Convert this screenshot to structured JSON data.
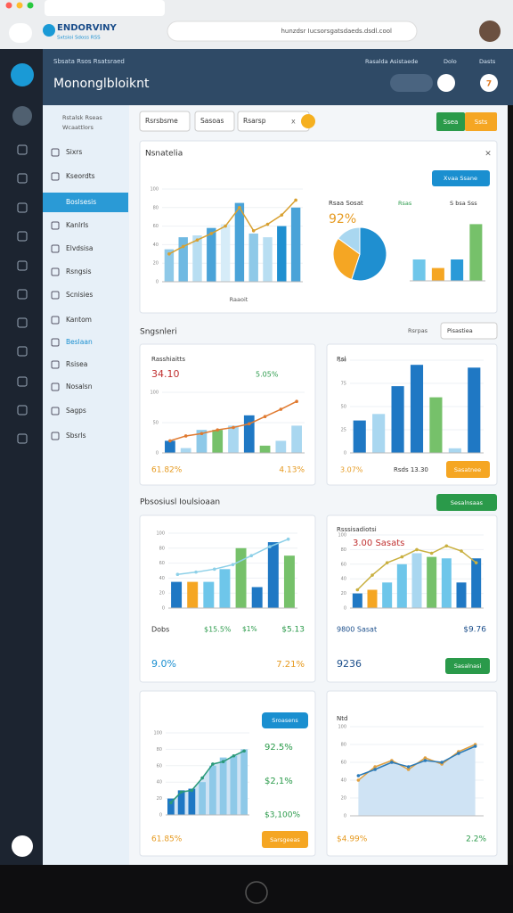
{
  "browser": {
    "brand": "ENDORVINY",
    "brand_sub": "Sxtsioi Sdoss RSS",
    "url": "hunzdsr Iucsorsgatsdaeds.dsdl.cool"
  },
  "header": {
    "crumb": "Sbsata Rsos Rsatsraed",
    "title": "Mononglbloiknt",
    "links": [
      "Rasalda Asistaede",
      "Dolo",
      "Dasts"
    ],
    "badge": "7"
  },
  "sidebar": {
    "heading": [
      "Rstalsk Rseas",
      "Wcaattlors"
    ],
    "items": [
      "Sixrs",
      "Kseordts",
      "Boslsesis",
      "Kanlrls",
      "Elvdsisa",
      "Rsngsis",
      "Scnisies",
      "Kantom",
      "Beslaan",
      "Rsisea",
      "Nosalsn",
      "Sagps",
      "Sbsrls"
    ],
    "active": 2
  },
  "filters": {
    "tabs": [
      "Rsrsbsme",
      "Sasoas",
      "Rsarsp"
    ],
    "close": "x",
    "actions": [
      "Ssea",
      "Ssts"
    ]
  },
  "overview": {
    "title": "Nsnatelia",
    "close": "×",
    "button": "Xvaa Ssane",
    "caption": "Raaoit",
    "stat_title": "Rsaa Sosat",
    "stat": "92%",
    "legend": [
      "Rsas",
      "S bsa Sss"
    ]
  },
  "section1": {
    "title": "Sngsnleri",
    "label": "Rsrpas",
    "select": "Pisastiea"
  },
  "section2": {
    "title": "Pbsosiusl Ioulsioaan",
    "button": "Sesalnsaas"
  },
  "cards": [
    {
      "title": "Rasshiaitts",
      "stat": "34.10",
      "delta": "5.05%",
      "footer": [
        "61.82%",
        "4.13%"
      ]
    },
    {
      "title": "Rsl",
      "footer": [
        "3.07%",
        "Rsds 13.30"
      ],
      "button": "Sasatnee"
    },
    {
      "title": "Dobs",
      "mid": [
        "$15.5%",
        "$1%",
        "$5.13"
      ],
      "footer": [
        "9.0%",
        "7.21%"
      ]
    },
    {
      "title": "Rsssisadiotsi",
      "stat": "3.00 Sasats",
      "mid": [
        "9800 Sasat",
        "$9.76"
      ],
      "footer": [
        "9236"
      ],
      "button": "Sasalnasi"
    },
    {
      "button_top": "Sroasens",
      "stats": [
        "92.5%",
        "$2,1%",
        "$3,100%"
      ],
      "footer": [
        "61.85%"
      ],
      "button": "Sarsgeeas"
    },
    {
      "title": "Ntd",
      "footer": [
        "$4.99%",
        "2.2%"
      ]
    }
  ],
  "charts": [
    {
      "ylim": [
        0,
        100
      ],
      "yticks": [
        0,
        20,
        40,
        60,
        80,
        100
      ],
      "values": [
        35,
        48,
        50,
        58,
        62,
        85,
        52,
        48,
        60,
        80
      ],
      "colors": [
        "#8ec9e8",
        "#6fb9e2",
        "#b8def2",
        "#4aa3d8",
        "#d6ecf8",
        "#4aa3d8",
        "#8ec9e8",
        "#b8def2",
        "#1f8fd0",
        "#4aa3d8"
      ],
      "line": [
        30,
        38,
        45,
        52,
        60,
        80,
        55,
        62,
        72,
        88
      ],
      "line_color": "#d8a030"
    },
    {
      "ylim": [
        0,
        60
      ],
      "yticks": [],
      "values": [
        20,
        12,
        20,
        53
      ],
      "colors": [
        "#6ec6ea",
        "#f5a623",
        "#2a9ad8",
        "#76c16a"
      ]
    },
    {
      "ylim": [
        0,
        100
      ],
      "yticks": [
        0,
        50,
        100
      ],
      "values": [
        20,
        8,
        38,
        38,
        45,
        62,
        12,
        20,
        45
      ],
      "colors": [
        "#1f78c4",
        "#a9d7f0",
        "#8ec9e8",
        "#76c16a",
        "#a9d7f0",
        "#1f78c4",
        "#76c16a",
        "#a9d7f0",
        "#a9d7f0"
      ],
      "line": [
        20,
        28,
        32,
        38,
        42,
        48,
        60,
        72,
        85
      ],
      "line_color": "#e07a30"
    },
    {
      "ylim": [
        0,
        100
      ],
      "yticks": [
        0,
        25,
        50,
        75,
        100
      ],
      "values": [
        35,
        42,
        72,
        95,
        60,
        5,
        92
      ],
      "colors": [
        "#1f78c4",
        "#a9d7f0",
        "#1f78c4",
        "#1f78c4",
        "#76c16a",
        "#a9d7f0",
        "#1f78c4"
      ]
    },
    {
      "ylim": [
        0,
        100
      ],
      "yticks": [
        0,
        20,
        40,
        60,
        80,
        100
      ],
      "values": [
        35,
        35,
        35,
        52,
        80,
        28,
        88,
        70
      ],
      "colors": [
        "#1f78c4",
        "#f5a623",
        "#6ec6ea",
        "#6ec6ea",
        "#76c16a",
        "#1f78c4",
        "#1f78c4",
        "#76c16a"
      ],
      "line": [
        45,
        48,
        52,
        58,
        70,
        82,
        92
      ],
      "line_color": "#8dd0e8"
    },
    {
      "ylim": [
        0,
        100
      ],
      "yticks": [
        0,
        20,
        40,
        60,
        80,
        100
      ],
      "values": [
        20,
        25,
        35,
        60,
        75,
        70,
        68,
        35,
        68
      ],
      "colors": [
        "#1f78c4",
        "#f5a623",
        "#6ec6ea",
        "#6ec6ea",
        "#a9d7f0",
        "#76c16a",
        "#6ec6ea",
        "#1f78c4",
        "#1f78c4"
      ],
      "line": [
        25,
        45,
        62,
        70,
        80,
        75,
        85,
        78,
        62
      ],
      "line_color": "#c9b040"
    },
    {
      "ylim": [
        0,
        100
      ],
      "yticks": [
        0,
        20,
        40,
        60,
        80,
        100
      ],
      "values": [
        20,
        30,
        32,
        40,
        60,
        70,
        72,
        80
      ],
      "colors": [
        "#1f78c4",
        "#1f78c4",
        "#1f78c4",
        "#8ec9e8",
        "#8ec9e8",
        "#8ec9e8",
        "#8ec9e8",
        "#8ec9e8"
      ],
      "line": [
        15,
        28,
        30,
        45,
        62,
        65,
        72,
        78
      ],
      "line_color": "#2a9a7a",
      "area": true
    },
    {
      "ylim": [
        0,
        100
      ],
      "yticks": [
        0,
        20,
        40,
        60,
        80,
        100
      ],
      "line": [
        40,
        55,
        62,
        52,
        65,
        58,
        72,
        80
      ],
      "line_color": "#e0a040",
      "line2": [
        45,
        52,
        60,
        55,
        62,
        60,
        70,
        78
      ],
      "line2_color": "#2a7ab8",
      "area": true
    }
  ],
  "pie": {
    "values": [
      55,
      30,
      15
    ],
    "colors": [
      "#1f8fd0",
      "#f5a623",
      "#a9d7f0"
    ]
  }
}
